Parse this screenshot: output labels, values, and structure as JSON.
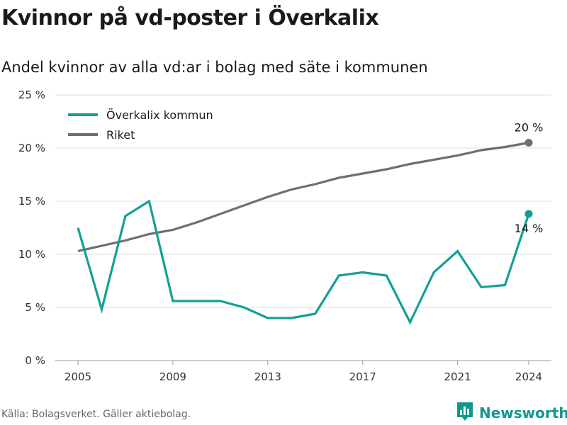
{
  "title": "Kvinnor på vd-poster i Överkalix",
  "subtitle": "Andel kvinnor av alla vd:ar i bolag med säte i kommunen",
  "source": "Källa: Bolagsverket. Gäller aktiebolag.",
  "brand": {
    "name": "Newsworthy",
    "icon": "newsworthy-logo-icon"
  },
  "colors": {
    "teal": "#12a096",
    "gray": "#6e6e73"
  },
  "chart_data": {
    "type": "line",
    "x": [
      2005,
      2006,
      2007,
      2008,
      2009,
      2010,
      2011,
      2012,
      2013,
      2014,
      2015,
      2016,
      2017,
      2018,
      2019,
      2020,
      2021,
      2022,
      2023,
      2024
    ],
    "series": [
      {
        "name": "Överkalix kommun",
        "color": "#12a096",
        "values": [
          12.5,
          4.8,
          13.6,
          15.0,
          5.6,
          5.6,
          5.6,
          5.0,
          4.0,
          4.0,
          4.4,
          8.0,
          8.3,
          8.0,
          3.6,
          8.3,
          10.3,
          6.9,
          7.1,
          13.8
        ]
      },
      {
        "name": "Riket",
        "color": "#6e6e73",
        "values": [
          10.3,
          10.8,
          11.3,
          11.9,
          12.3,
          13.0,
          13.8,
          14.6,
          15.4,
          16.1,
          16.6,
          17.2,
          17.6,
          18.0,
          18.5,
          18.9,
          19.3,
          19.8,
          20.1,
          20.5
        ]
      }
    ],
    "x_ticks": [
      "2005",
      "2009",
      "2013",
      "2017",
      "2021",
      "2024"
    ],
    "y_ticks": [
      "0 %",
      "5 %",
      "10 %",
      "15 %",
      "20 %",
      "25 %"
    ],
    "ylim": [
      0,
      25
    ],
    "end_labels": [
      "14 %",
      "20 %"
    ],
    "legend": {
      "placement": "top-left",
      "entries": [
        "Överkalix kommun",
        "Riket"
      ]
    },
    "grid": "horizontal"
  }
}
